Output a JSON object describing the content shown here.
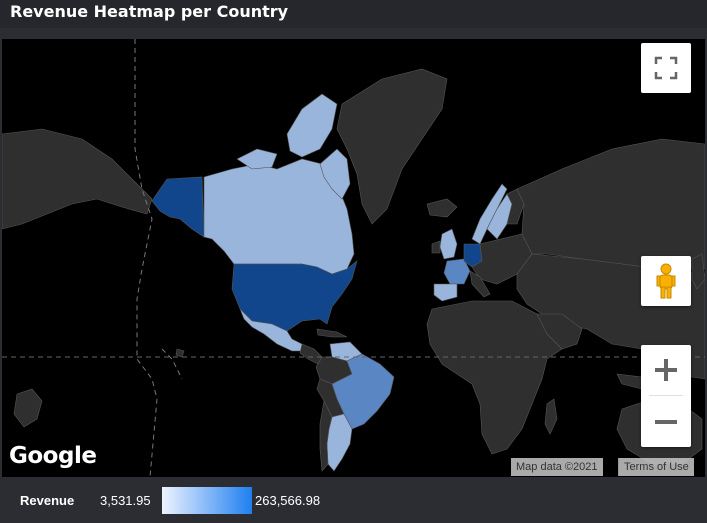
{
  "header": {
    "title": "Revenue Heatmap per Country"
  },
  "map": {
    "attribution": {
      "map_data": "Map data ©2021",
      "terms": "Terms of Use"
    },
    "logo_text": "Google",
    "controls": {
      "fullscreen_icon": "fullscreen-icon",
      "pegman_icon": "pegman-icon",
      "zoom_in_symbol": "+",
      "zoom_out_symbol": "−"
    },
    "colors": {
      "land": "#2f2f2f",
      "ocean": "#000000",
      "borders": "#555555",
      "highlight_dark": "#12468c",
      "highlight_mid": "#5b86c4",
      "highlight_light": "#9ab5dc"
    },
    "highlighted_countries": [
      {
        "name": "United States",
        "shade": "dark"
      },
      {
        "name": "Canada",
        "shade": "light"
      },
      {
        "name": "Greenland",
        "shade": "none"
      },
      {
        "name": "Mexico",
        "shade": "light"
      },
      {
        "name": "Brazil",
        "shade": "mid"
      },
      {
        "name": "Argentina",
        "shade": "light"
      },
      {
        "name": "Venezuela",
        "shade": "light"
      },
      {
        "name": "Germany",
        "shade": "dark"
      },
      {
        "name": "France",
        "shade": "mid"
      },
      {
        "name": "Sweden",
        "shade": "light"
      },
      {
        "name": "Norway",
        "shade": "light"
      },
      {
        "name": "United Kingdom",
        "shade": "light"
      }
    ]
  },
  "legend": {
    "label": "Revenue",
    "min_value": "3,531.95",
    "max_value": "263,566.98",
    "gradient_start": "#eef3ff",
    "gradient_end": "#1f7ff0"
  }
}
